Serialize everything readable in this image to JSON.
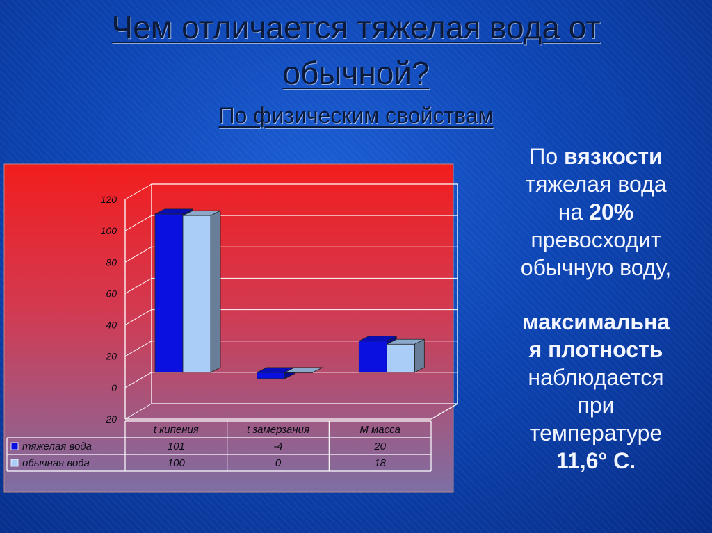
{
  "slide": {
    "title_line1": "Чем отличается тяжелая вода от",
    "title_line2": "обычной?",
    "subtitle": "По физическим свойствам"
  },
  "side_text": {
    "p1_pre": "По ",
    "p1_bold": "вязкости",
    "p1_line2": "тяжелая вода",
    "p1_pre3": "на ",
    "p1_bold3": "20%",
    "p1_line4": "превосходит",
    "p1_line5": "обычную воду,",
    "p2_bold1": "максимальна",
    "p2_bold2": "я плотность",
    "p2_line3": "наблюдается",
    "p2_line4": "при",
    "p2_line5": "температуре",
    "p2_bold6": "11,6° С."
  },
  "colors": {
    "heavy": "#0a10e0",
    "normal": "#a9cdf7",
    "panel_top": "#f21d1d",
    "panel_bottom": "#7d6fa4"
  },
  "chart_data": {
    "type": "bar",
    "categories": [
      "t кипения",
      "t замерзания",
      "М масса"
    ],
    "series": [
      {
        "name": "тяжелая вода",
        "values": [
          101,
          -4,
          20
        ]
      },
      {
        "name": "обычная вода",
        "values": [
          100,
          0,
          18
        ]
      }
    ],
    "yticks": [
      "120",
      "100",
      "80",
      "60",
      "40",
      "20",
      "0",
      "-20"
    ],
    "ylim": [
      -20,
      120
    ],
    "legend": "data-table"
  }
}
